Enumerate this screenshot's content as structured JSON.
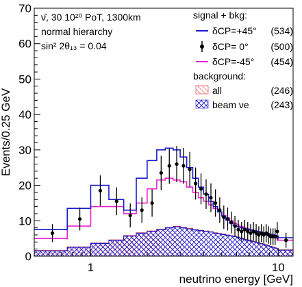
{
  "chart_data": {
    "type": "histogram",
    "title": "",
    "xlabel": "neutrino energy [GeV]",
    "ylabel": "Events/0.25 GeV",
    "x_scale": "log",
    "xlim": [
      0.5,
      12
    ],
    "ylim": [
      0,
      70
    ],
    "x_ticks": [
      {
        "value": 1,
        "label": "1"
      },
      {
        "value": 10,
        "label": "10"
      }
    ],
    "y_ticks": [
      {
        "value": 0,
        "label": "0"
      },
      {
        "value": 10,
        "label": "10"
      },
      {
        "value": 20,
        "label": "20"
      },
      {
        "value": 30,
        "label": "30"
      },
      {
        "value": 40,
        "label": "40"
      },
      {
        "value": 50,
        "label": "50"
      },
      {
        "value": 60,
        "label": "60"
      },
      {
        "value": 70,
        "label": "70"
      }
    ],
    "bin_edges": [
      0.5,
      0.75,
      1.0,
      1.25,
      1.5,
      1.75,
      2.0,
      2.25,
      2.5,
      2.75,
      3.0,
      3.25,
      3.5,
      3.75,
      4.0,
      4.25,
      4.5,
      4.75,
      5.0,
      5.25,
      5.5,
      5.75,
      6.0,
      6.25,
      6.5,
      6.75,
      7.0,
      7.25,
      7.5,
      7.75,
      8.0,
      8.25,
      8.5,
      8.75,
      9.0,
      9.25,
      9.5,
      9.75,
      10.0,
      12.0
    ],
    "annotation": {
      "line1": "ν̄,  30 10²⁰ PoT, 1300km",
      "line2": "normal hierarchy",
      "line3": "sin² 2θ₁₃ = 0.04"
    },
    "series": [
      {
        "name": "δCP=+45°",
        "legend_value": "(534)",
        "color": "#1a1acc",
        "style": "step",
        "values": [
          7.5,
          13.5,
          20.0,
          16.0,
          13.0,
          22.0,
          27.0,
          30.0,
          30.5,
          30.0,
          28.0,
          25.0,
          22.0,
          19.5,
          17.5,
          15.5,
          14.0,
          12.5,
          11.3,
          10.2,
          9.3,
          8.7,
          8.3,
          8.0,
          7.8,
          7.6,
          7.4,
          7.3,
          7.1,
          6.9,
          6.8,
          6.6,
          6.5,
          6.3,
          6.2,
          6.0,
          5.9,
          5.7,
          5.2
        ]
      },
      {
        "name": "δCP=-45°",
        "legend_value": "(454)",
        "color": "#ee22cc",
        "style": "step",
        "values": [
          5.0,
          8.5,
          14.0,
          14.0,
          12.0,
          15.0,
          19.0,
          21.5,
          22.0,
          21.5,
          21.0,
          19.5,
          18.0,
          16.5,
          15.5,
          14.5,
          13.5,
          12.5,
          11.5,
          10.8,
          10.0,
          9.3,
          8.8,
          8.3,
          8.0,
          7.7,
          7.4,
          7.1,
          6.9,
          6.7,
          6.5,
          6.3,
          6.1,
          5.9,
          5.7,
          5.5,
          5.3,
          5.1,
          4.5
        ]
      },
      {
        "name": "δCP= 0°",
        "legend_value": "(500)",
        "style": "points",
        "x": [
          0.625,
          0.875,
          1.125,
          1.375,
          1.625,
          1.875,
          2.125,
          2.375,
          2.625,
          2.875,
          3.125,
          3.375,
          3.625,
          3.875,
          4.125,
          4.375,
          4.625,
          4.875,
          5.125,
          5.375,
          5.625,
          5.875,
          6.125,
          6.375,
          6.625,
          6.875,
          7.125,
          7.375,
          7.625,
          7.875,
          8.125,
          8.375,
          8.625,
          8.875,
          9.125,
          9.375,
          9.625,
          9.875,
          11.0
        ],
        "values": [
          6.5,
          10.5,
          18.5,
          15.5,
          11.5,
          13.0,
          15.0,
          23.5,
          25.5,
          26.0,
          25.5,
          24.5,
          20.5,
          19.0,
          17.5,
          16.5,
          15.0,
          13.0,
          11.0,
          10.5,
          9.5,
          8.5,
          7.5,
          7.0,
          7.5,
          7.0,
          6.5,
          7.0,
          6.5,
          6.0,
          6.5,
          6.0,
          6.5,
          6.0,
          5.5,
          5.5,
          5.5,
          7.0,
          4.5
        ]
      }
    ],
    "background": [
      {
        "name": "all",
        "legend_value": "(246)",
        "color": "#ee2222",
        "style": "hatch",
        "values": [
          1.6,
          2.6,
          3.7,
          4.6,
          5.8,
          6.6,
          7.1,
          7.6,
          8.1,
          8.4,
          8.1,
          7.8,
          7.5,
          7.3,
          7.1,
          6.9,
          6.6,
          6.4,
          6.2,
          6.0,
          5.8,
          5.6,
          5.4,
          5.1,
          4.8,
          4.6,
          4.4,
          4.2,
          4.0,
          3.8,
          3.6,
          3.4,
          3.2,
          3.0,
          2.8,
          2.6,
          2.4,
          2.2,
          1.8
        ]
      },
      {
        "name": "beam νe",
        "legend_value": "(243)",
        "color": "#1a1acc",
        "style": "crosshatch",
        "values": [
          1.5,
          2.5,
          3.6,
          4.5,
          5.7,
          6.5,
          7.0,
          7.5,
          8.0,
          8.3,
          8.0,
          7.7,
          7.4,
          7.2,
          7.0,
          6.8,
          6.5,
          6.3,
          6.1,
          5.9,
          5.7,
          5.5,
          5.3,
          5.0,
          4.7,
          4.5,
          4.3,
          4.1,
          3.9,
          3.7,
          3.5,
          3.3,
          3.1,
          2.9,
          2.7,
          2.5,
          2.3,
          2.1,
          1.7
        ]
      }
    ],
    "legend": {
      "placement": "top-right",
      "signal_header": "signal + bkg:",
      "background_header": "background:"
    }
  }
}
